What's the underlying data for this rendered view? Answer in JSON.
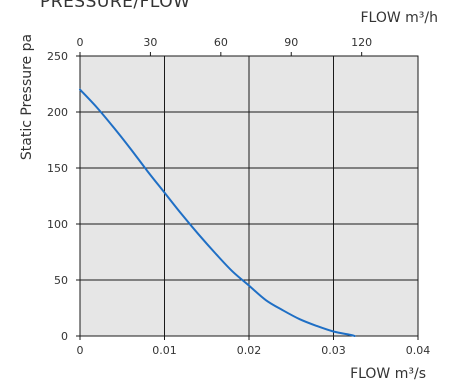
{
  "title": "PRESSURE/FLOW",
  "chart_data": {
    "type": "line",
    "title": "PRESSURE/FLOW",
    "xlabel": "FLOW m³/s",
    "x2label": "FLOW m³/h",
    "ylabel": "Static Pressure pa",
    "xlim": [
      0,
      0.04
    ],
    "x2lim": [
      0,
      144
    ],
    "ylim": [
      0,
      250
    ],
    "x_ticks": [
      0,
      0.01,
      0.02,
      0.03,
      0.04
    ],
    "x_tick_labels": [
      "0",
      "0.01",
      "0.02",
      "0.03",
      "0.04"
    ],
    "x2_ticks": [
      0,
      30,
      60,
      90,
      120
    ],
    "x2_tick_labels": [
      "0",
      "30",
      "60",
      "90",
      "120"
    ],
    "y_ticks": [
      0,
      50,
      100,
      150,
      200,
      250
    ],
    "y_tick_labels": [
      "0",
      "50",
      "100",
      "150",
      "200",
      "250"
    ],
    "grid": true,
    "series": [
      {
        "color": "#1f6fc5",
        "x": [
          0,
          0.002,
          0.004,
          0.006,
          0.008,
          0.01,
          0.012,
          0.014,
          0.016,
          0.018,
          0.02,
          0.022,
          0.024,
          0.026,
          0.028,
          0.03,
          0.032,
          0.0325
        ],
        "y": [
          220,
          204,
          186,
          167,
          147,
          128,
          109,
          91,
          74,
          58,
          45,
          32,
          23,
          15,
          9,
          4,
          1,
          0
        ]
      }
    ]
  },
  "colors": {
    "plot_background": "#e6e6e6",
    "gridline": "#1a1a1a",
    "curve": "#1f6fc5"
  }
}
